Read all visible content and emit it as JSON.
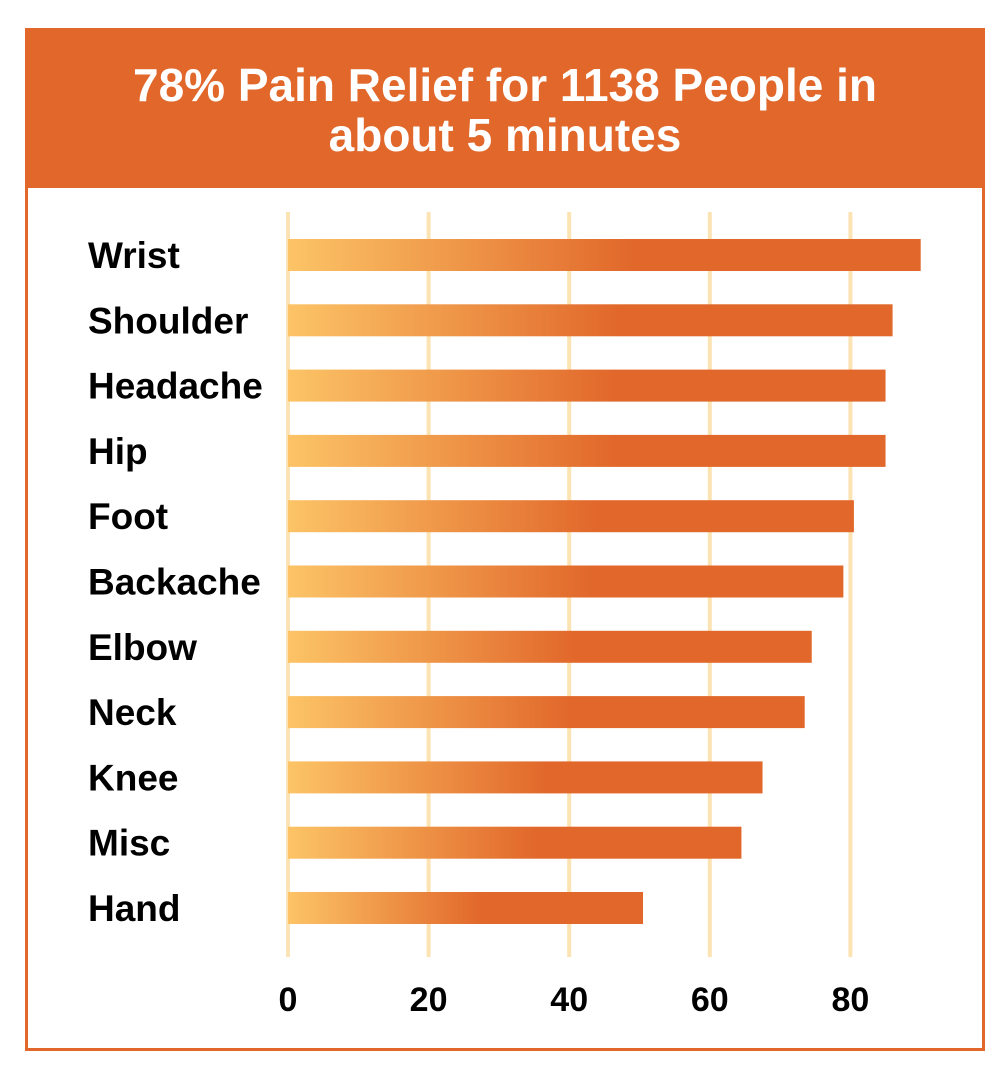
{
  "colors": {
    "accent": "#e1672a",
    "bar_start": "#fcc466",
    "bar_end": "#e1672a",
    "gridline": "#fbe3b4",
    "background": "#ffffff"
  },
  "chart_data": {
    "type": "bar",
    "orientation": "horizontal",
    "title": "78% Pain Relief for 1138 People in about 5 minutes",
    "categories": [
      "Wrist",
      "Shoulder",
      "Headache",
      "Hip",
      "Foot",
      "Backache",
      "Elbow",
      "Neck",
      "Knee",
      "Misc",
      "Hand"
    ],
    "values": [
      90,
      86,
      85,
      85,
      80.5,
      79,
      74.5,
      73.5,
      67.5,
      64.5,
      50.5
    ],
    "xticks": [
      0,
      20,
      40,
      60,
      80
    ],
    "xlim": [
      0,
      90
    ],
    "grid": "vertical",
    "legend": "none"
  }
}
